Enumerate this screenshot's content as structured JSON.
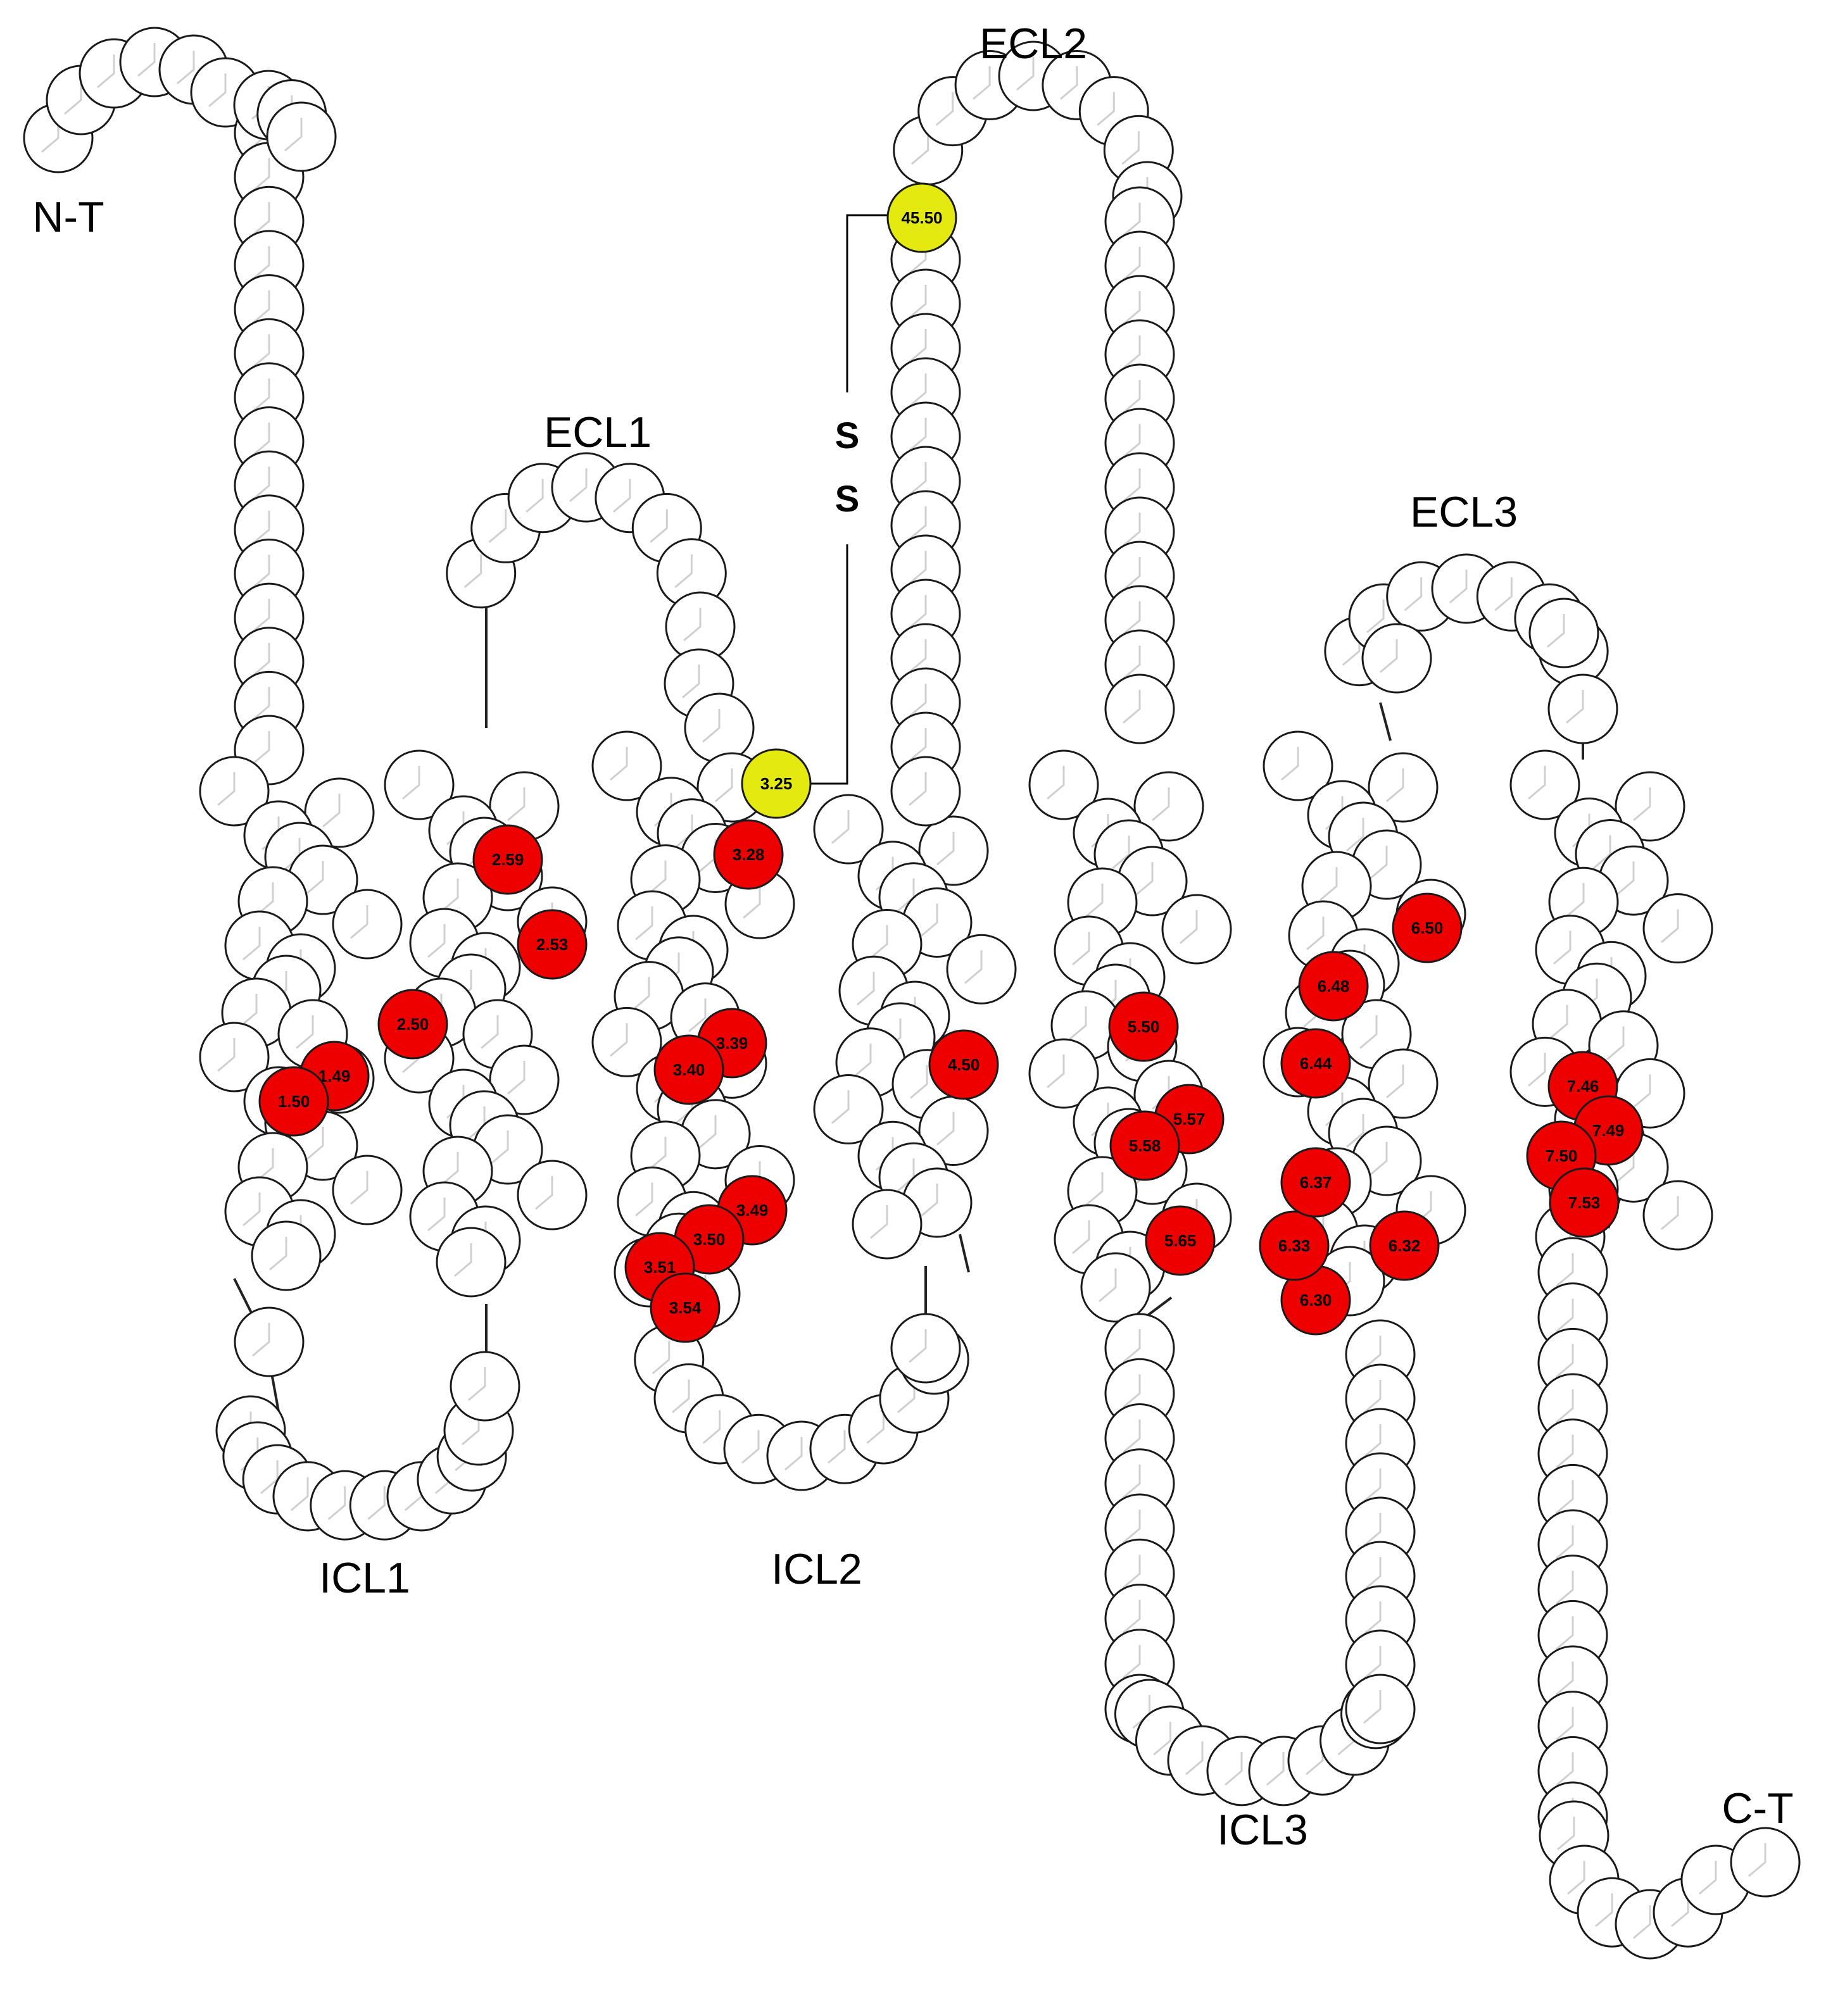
{
  "colors": {
    "highlight_red": "#ee0000",
    "highlight_yellow": "#e4ea10",
    "residue_fill": "#ffffff",
    "residue_stroke": "#1a1a1a"
  },
  "region_labels": {
    "n_term": "N-T",
    "c_term": "C-T",
    "ecl1": "ECL1",
    "ecl2": "ECL2",
    "ecl3": "ECL3",
    "icl1": "ICL1",
    "icl2": "ICL2",
    "icl3": "ICL3"
  },
  "disulfide": {
    "letters": [
      "S",
      "S"
    ],
    "from": "3.25",
    "to": "45.50"
  },
  "highlighted_residues": {
    "red": [
      "1.49",
      "1.50",
      "2.50",
      "2.53",
      "2.59",
      "3.28",
      "3.39",
      "3.40",
      "3.49",
      "3.50",
      "3.51",
      "3.54",
      "4.50",
      "5.50",
      "5.57",
      "5.58",
      "5.65",
      "6.30",
      "6.32",
      "6.33",
      "6.37",
      "6.44",
      "6.48",
      "6.50",
      "7.46",
      "7.49",
      "7.50",
      "7.53"
    ],
    "yellow": [
      "3.25",
      "45.50"
    ]
  }
}
